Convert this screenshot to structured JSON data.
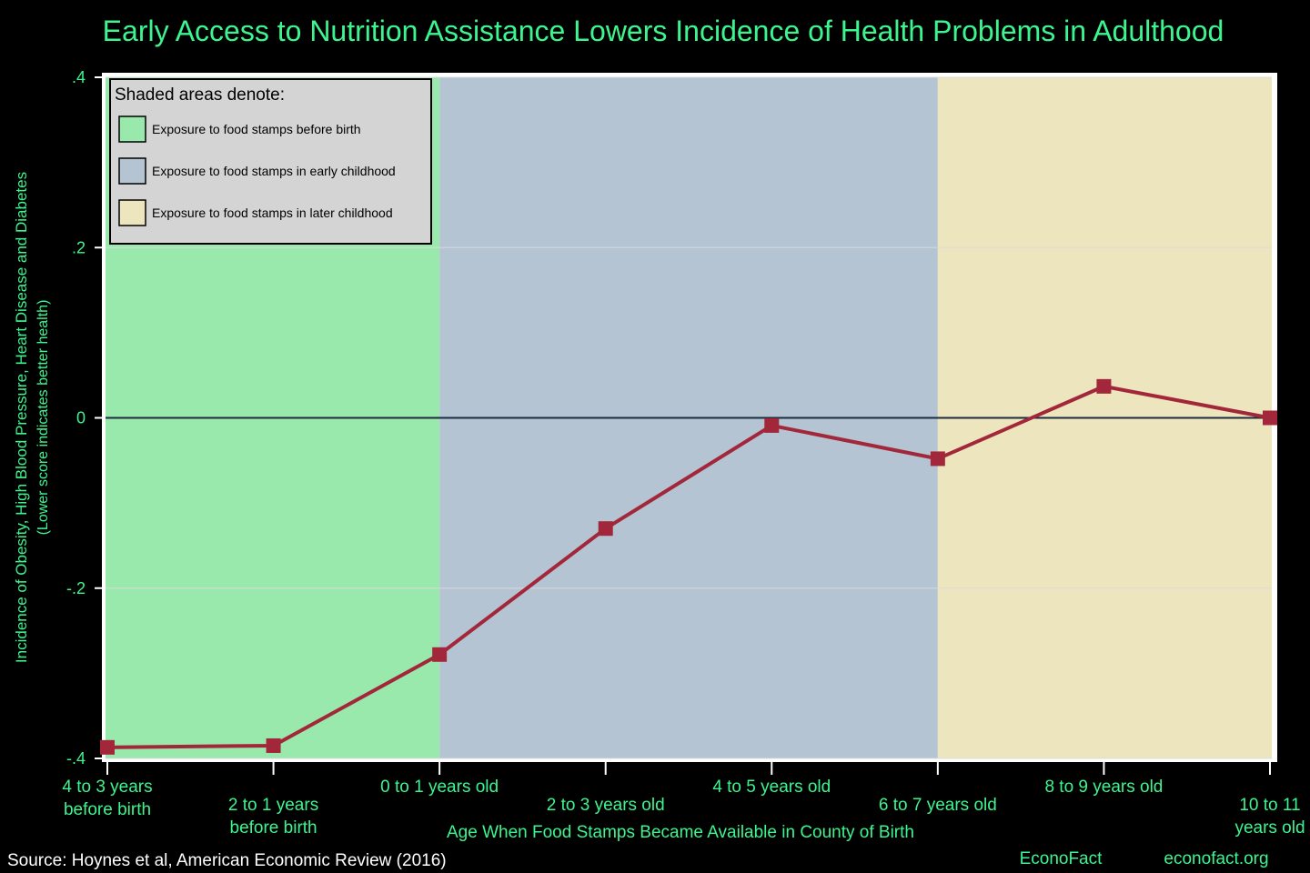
{
  "chart_data": {
    "type": "line",
    "title": "Early Access to Nutrition Assistance Lowers Incidence of Health Problems in Adulthood",
    "xlabel": "Age When Food Stamps Became Available in County of Birth",
    "ylabel_line1": "Incidence of Obesity, High Blood Pressure, Heart Disease and Diabetes",
    "ylabel_line2": "(Lower score indicates better health)",
    "categories": [
      [
        "4 to 3 years",
        "before birth"
      ],
      [
        "2 to 1 years",
        "before birth"
      ],
      [
        "0 to 1 years old"
      ],
      [
        "2 to 3 years old"
      ],
      [
        "4 to 5 years old"
      ],
      [
        "6 to 7 years old"
      ],
      [
        "8 to 9 years old"
      ],
      [
        "10 to 11",
        "years old"
      ]
    ],
    "series": [
      {
        "values": [
          -0.387,
          -0.385,
          -0.278,
          -0.13,
          -0.009,
          -0.048,
          0.037,
          0.0
        ],
        "color": "#a3273a"
      }
    ],
    "ylim": [
      -0.4,
      0.4
    ],
    "yticks": [
      -0.4,
      -0.2,
      0,
      0.2,
      0.4
    ],
    "ytick_labels": [
      "-.4",
      "-.2",
      "0",
      ".2",
      ".4"
    ],
    "grid": true,
    "reference_line": 0,
    "shaded_regions": [
      {
        "from_index": 0,
        "to_index": 2,
        "color": "#99e9ac"
      },
      {
        "from_index": 2,
        "to_index": 5,
        "color": "#b4c4d2"
      },
      {
        "from_index": 5,
        "to_index": 7,
        "color": "#ede5be"
      }
    ],
    "legend": {
      "position": "top-left",
      "title": "Shaded areas denote:",
      "items": [
        {
          "label": "Exposure to food stamps before birth",
          "color": "#99e9ac"
        },
        {
          "label": "Exposure to food stamps in early childhood",
          "color": "#b4c4d2"
        },
        {
          "label": "Exposure to food stamps in later childhood",
          "color": "#ede5be"
        }
      ]
    }
  },
  "footer": {
    "source": "Source: Hoynes et al, American Economic Review (2016)",
    "brand": "EconoFact",
    "url": "econofact.org"
  }
}
